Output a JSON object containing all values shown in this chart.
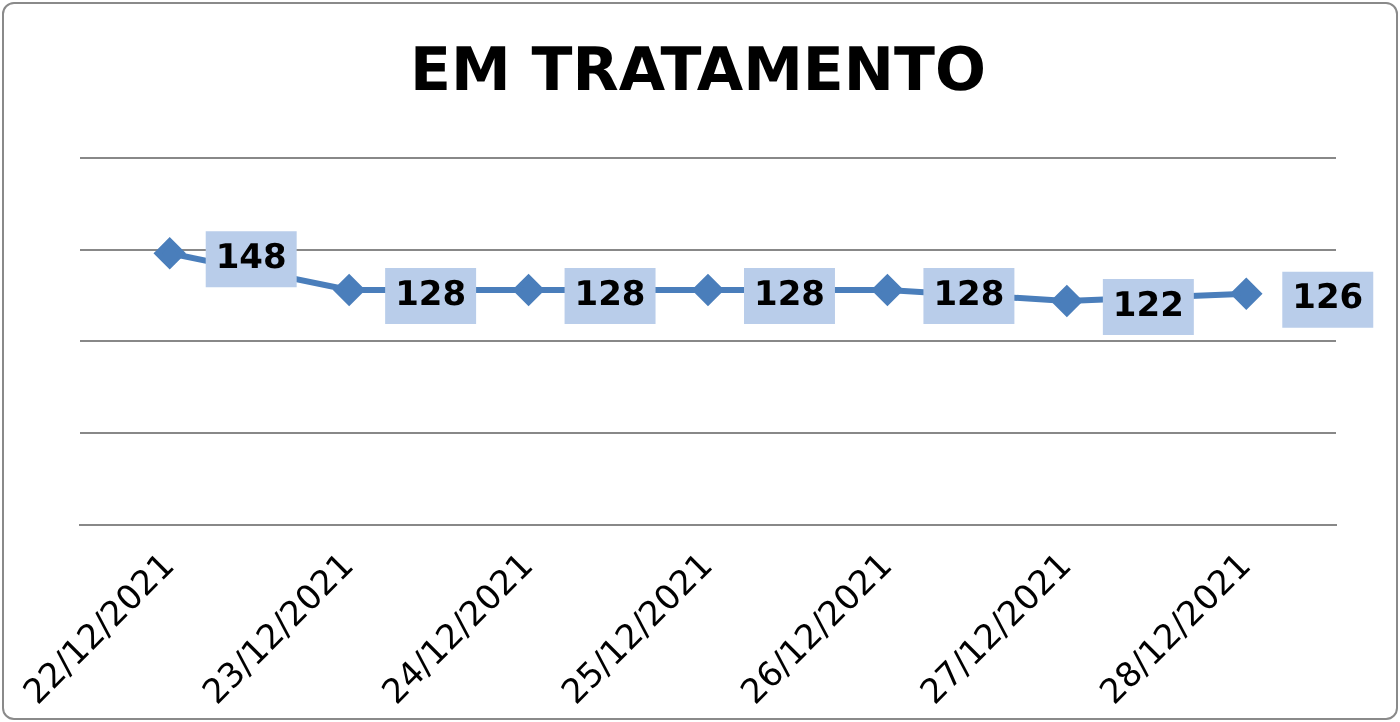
{
  "chart_data": {
    "type": "line",
    "title": "EM TRATAMENTO",
    "categories": [
      "22/12/2021",
      "23/12/2021",
      "24/12/2021",
      "25/12/2021",
      "26/12/2021",
      "27/12/2021",
      "28/12/2021"
    ],
    "series": [
      {
        "color": "#4a7ebb",
        "values": [
          148,
          128,
          128,
          128,
          128,
          122,
          126
        ]
      }
    ],
    "ylim": [
      0,
      200
    ],
    "yticks": [
      {
        "value": 0,
        "label": null
      },
      {
        "value": 50,
        "label": null
      },
      {
        "value": 100,
        "label": null
      },
      {
        "value": 150,
        "label": null
      },
      {
        "value": 200,
        "label": null
      }
    ],
    "tick_labels": "x",
    "grid": "y",
    "legend": false,
    "marker": "diamond",
    "line_style": "solid",
    "data_labels": true
  }
}
